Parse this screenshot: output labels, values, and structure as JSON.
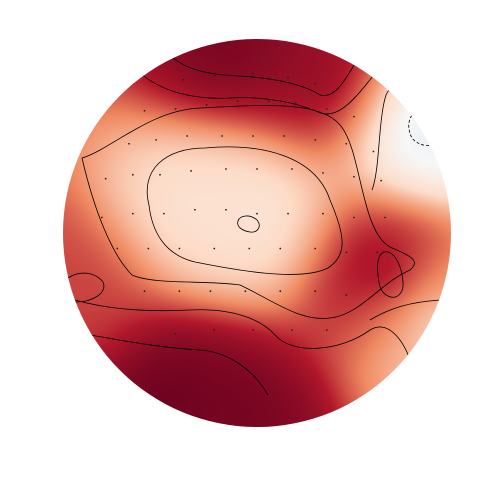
{
  "chart_data": {
    "type": "heatmap",
    "subtype": "scalp-topomap",
    "title": "",
    "colormap": "RdBu_r",
    "color_stops": [
      "#2166ac",
      "#d1e5f0",
      "#f7f7f7",
      "#fddbc7",
      "#ef8a62",
      "#b2182b",
      "#67001f"
    ],
    "value_range": [
      -1,
      1
    ],
    "contour_levels": [
      0.35,
      0.55,
      0.75,
      0.9
    ],
    "sources": [
      {
        "region": "bottom-left",
        "x": -0.45,
        "y": -0.85,
        "value": 1.0
      },
      {
        "region": "bottom-center",
        "x": -0.1,
        "y": -0.95,
        "value": 0.95
      },
      {
        "region": "top-left",
        "x": -0.15,
        "y": 0.95,
        "value": 0.95
      },
      {
        "region": "top-center",
        "x": 0.35,
        "y": 0.8,
        "value": 0.85
      },
      {
        "region": "left",
        "x": -0.95,
        "y": -0.3,
        "value": 0.55
      },
      {
        "region": "right-center",
        "x": 0.66,
        "y": -0.2,
        "value": 0.9
      },
      {
        "region": "central",
        "x": 0.0,
        "y": 0.1,
        "value": -0.15
      },
      {
        "region": "center-left",
        "x": -0.35,
        "y": 0.15,
        "value": -0.1
      },
      {
        "region": "right-upper",
        "x": 0.85,
        "y": 0.55,
        "value": -0.55
      },
      {
        "region": "right-lower",
        "x": 0.9,
        "y": -0.45,
        "value": -0.1
      }
    ],
    "electrodes": [
      [
        -0.38,
        0.79
      ],
      [
        -0.22,
        0.81
      ],
      [
        -0.02,
        0.82
      ],
      [
        0.16,
        0.8
      ],
      [
        0.3,
        0.77
      ],
      [
        -0.58,
        0.63
      ],
      [
        -0.42,
        0.64
      ],
      [
        -0.26,
        0.66
      ],
      [
        -0.1,
        0.68
      ],
      [
        0.06,
        0.68
      ],
      [
        0.2,
        0.67
      ],
      [
        0.36,
        0.64
      ],
      [
        0.5,
        0.6
      ],
      [
        -0.66,
        0.46
      ],
      [
        -0.52,
        0.48
      ],
      [
        -0.36,
        0.5
      ],
      [
        -0.18,
        0.5
      ],
      [
        -0.02,
        0.5
      ],
      [
        0.14,
        0.5
      ],
      [
        0.3,
        0.48
      ],
      [
        0.46,
        0.46
      ],
      [
        0.6,
        0.42
      ],
      [
        -0.78,
        0.28
      ],
      [
        -0.64,
        0.3
      ],
      [
        -0.5,
        0.3
      ],
      [
        -0.34,
        0.32
      ],
      [
        -0.16,
        0.33
      ],
      [
        0.0,
        0.33
      ],
      [
        0.18,
        0.33
      ],
      [
        0.34,
        0.31
      ],
      [
        0.5,
        0.29
      ],
      [
        0.64,
        0.27
      ],
      [
        -0.8,
        0.08
      ],
      [
        -0.64,
        0.1
      ],
      [
        -0.48,
        0.1
      ],
      [
        -0.32,
        0.12
      ],
      [
        -0.16,
        0.12
      ],
      [
        0.0,
        0.1
      ],
      [
        0.16,
        0.1
      ],
      [
        0.34,
        0.1
      ],
      [
        0.5,
        0.08
      ],
      [
        0.66,
        0.08
      ],
      [
        -0.72,
        -0.08
      ],
      [
        -0.56,
        -0.08
      ],
      [
        -0.4,
        -0.08
      ],
      [
        -0.22,
        -0.08
      ],
      [
        -0.04,
        -0.08
      ],
      [
        0.12,
        -0.08
      ],
      [
        0.3,
        -0.08
      ],
      [
        0.46,
        -0.1
      ],
      [
        0.62,
        -0.1
      ],
      [
        -0.58,
        -0.3
      ],
      [
        -0.4,
        -0.3
      ],
      [
        -0.24,
        -0.3
      ],
      [
        -0.06,
        -0.3
      ],
      [
        0.12,
        -0.3
      ],
      [
        0.3,
        -0.3
      ],
      [
        0.46,
        -0.32
      ],
      [
        -0.42,
        -0.52
      ],
      [
        -0.22,
        -0.5
      ],
      [
        -0.02,
        -0.5
      ],
      [
        0.18,
        -0.5
      ],
      [
        0.36,
        -0.5
      ]
    ]
  }
}
